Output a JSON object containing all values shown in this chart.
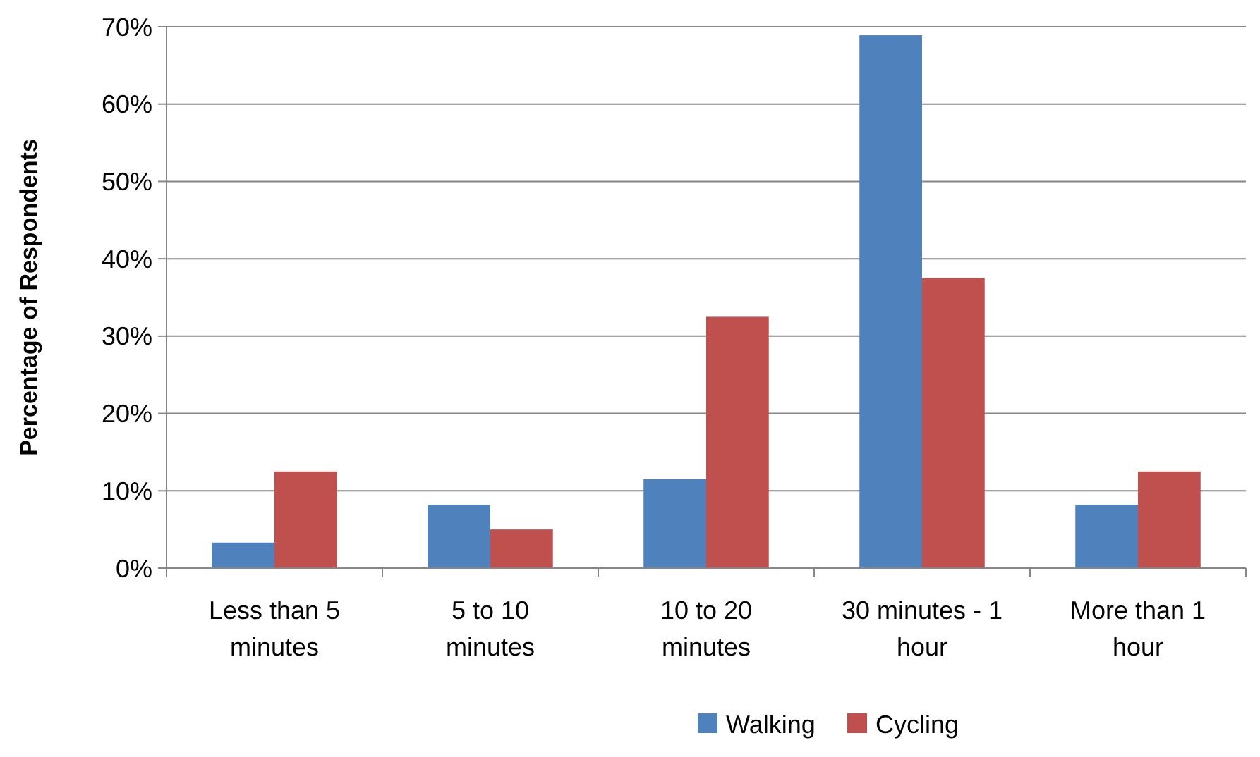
{
  "chart_data": {
    "type": "bar",
    "ylabel": "Percentage of Respondents",
    "categories": [
      "Less than 5 minutes",
      "5 to 10 minutes",
      "10 to 20 minutes",
      "30 minutes - 1 hour",
      "More than 1 hour"
    ],
    "series": [
      {
        "name": "Walking",
        "color": "#4f81bd",
        "values": [
          3.3,
          8.2,
          11.5,
          68.9,
          8.2
        ]
      },
      {
        "name": "Cycling",
        "color": "#c0504d",
        "values": [
          12.5,
          5,
          32.5,
          37.5,
          12.5
        ]
      }
    ],
    "ylim": [
      0,
      70
    ],
    "yticks": [
      {
        "value": 0,
        "label": "0%"
      },
      {
        "value": 10,
        "label": "10%"
      },
      {
        "value": 20,
        "label": "20%"
      },
      {
        "value": 30,
        "label": "30%"
      },
      {
        "value": 40,
        "label": "40%"
      },
      {
        "value": 50,
        "label": "50%"
      },
      {
        "value": 60,
        "label": "60%"
      },
      {
        "value": 70,
        "label": "70%"
      }
    ],
    "grid": "y",
    "legend": "bottom"
  }
}
